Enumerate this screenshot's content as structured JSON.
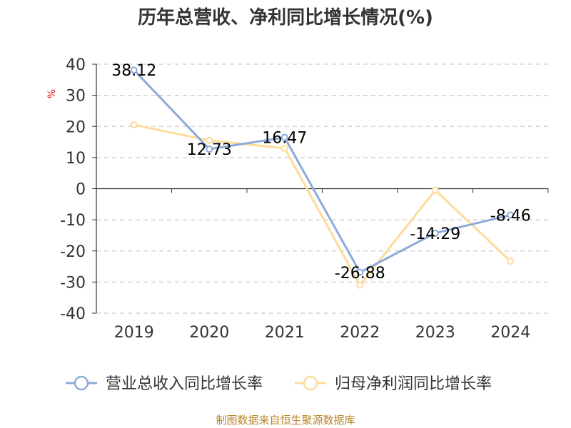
{
  "chart_data": {
    "type": "line",
    "title": "历年总营收、净利同比增长情况(%)",
    "ylabel": "%",
    "xlabel": "",
    "categories": [
      "2019",
      "2020",
      "2021",
      "2022",
      "2023",
      "2024"
    ],
    "ylim": [
      -40,
      40
    ],
    "yticks": [
      40,
      30,
      20,
      10,
      0,
      -10,
      -20,
      -30,
      -40
    ],
    "grid": true,
    "legend_position": "bottom",
    "series": [
      {
        "name": "营业总收入同比增长率",
        "values": [
          38.12,
          12.73,
          16.47,
          -26.88,
          -14.29,
          -8.46
        ],
        "labels": [
          "38.12",
          "12.73",
          "16.47",
          "-26.88",
          "-14.29",
          "-8.46"
        ],
        "color": "#8eaadb"
      },
      {
        "name": "归母净利润同比增长率",
        "values": [
          20.5,
          15.5,
          13.0,
          -31.0,
          -0.5,
          -23.3
        ],
        "color": "#fddc9a"
      }
    ]
  },
  "source_note": "制图数据来自恒生聚源数据库"
}
